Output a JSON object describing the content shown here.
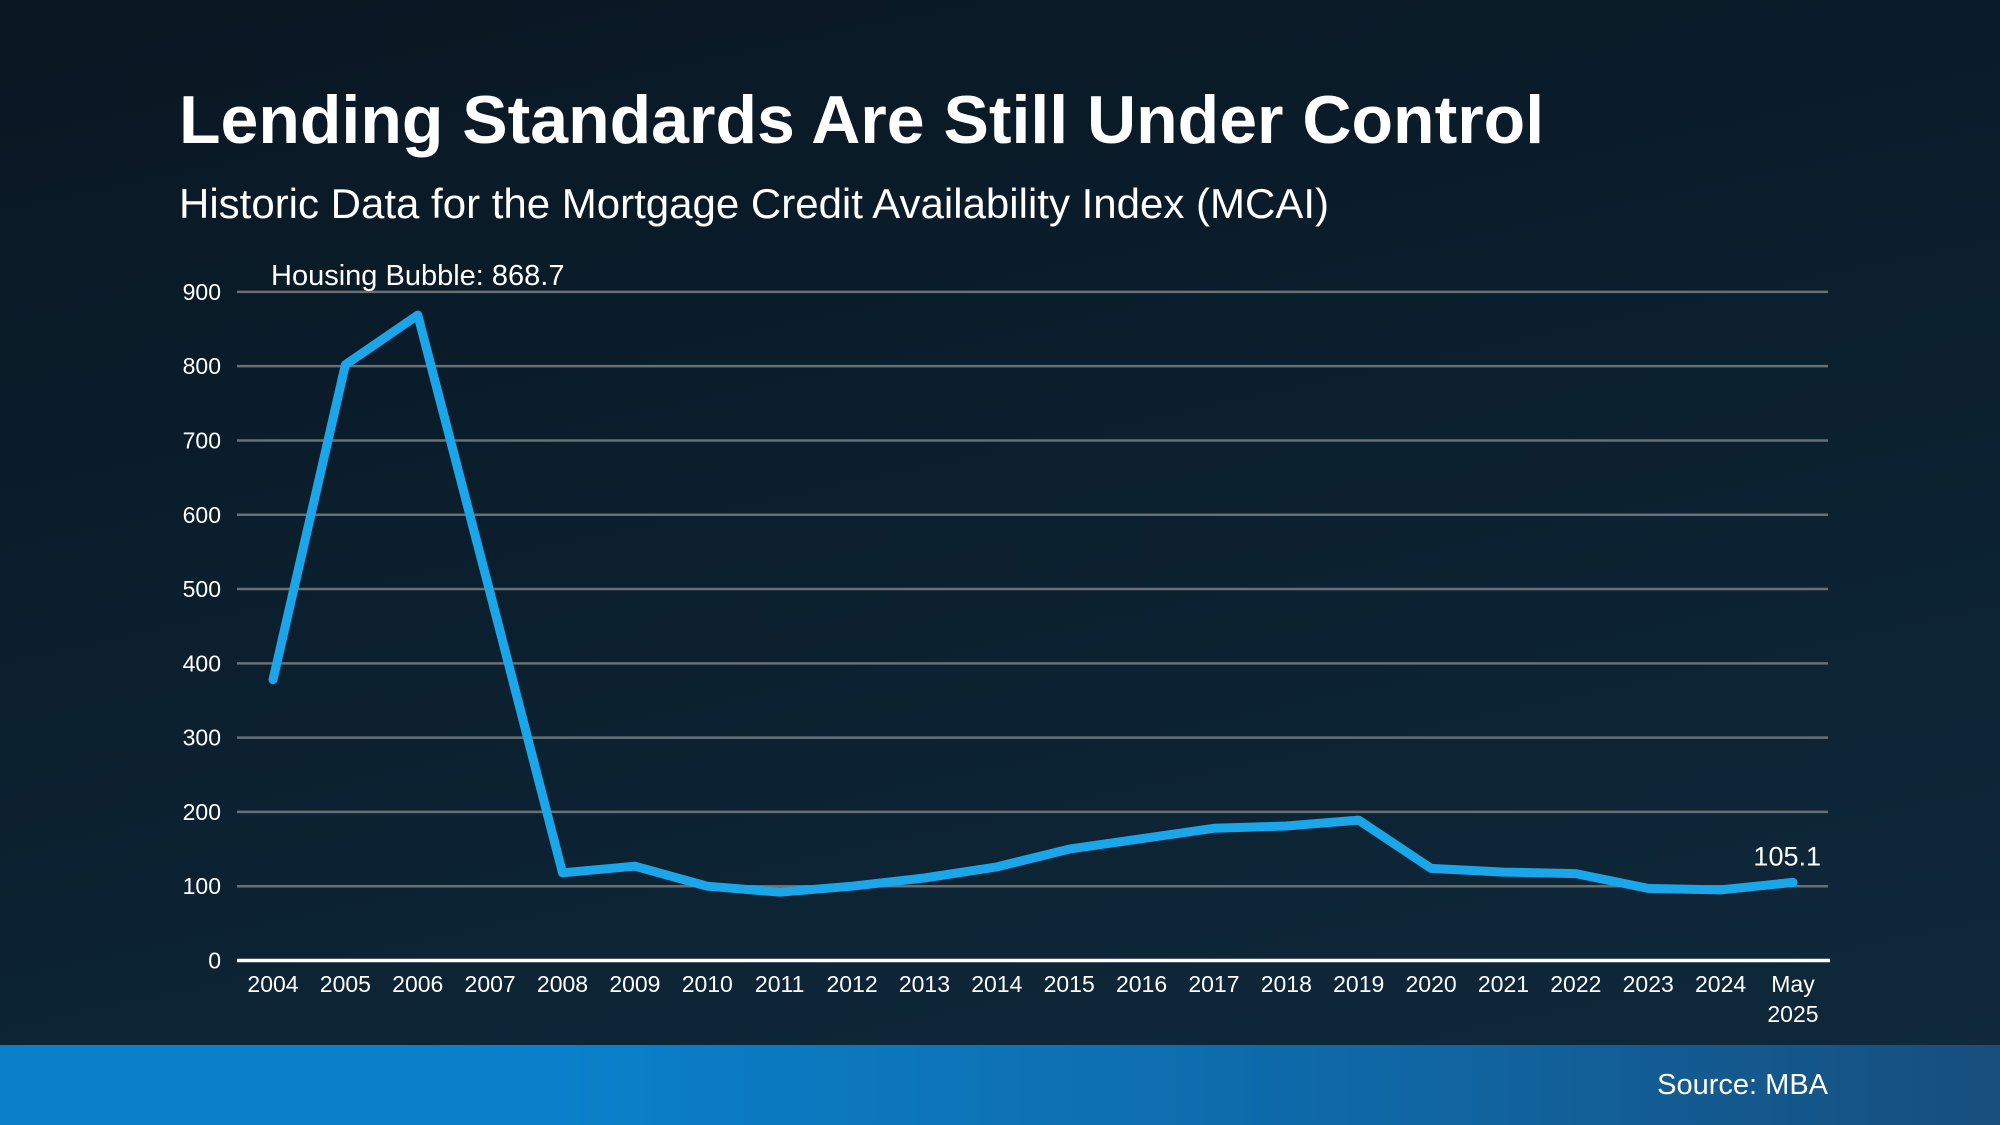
{
  "header": {
    "title": "Lending Standards Are Still Under Control",
    "subtitle": "Historic Data for the Mortgage Credit Availability Index (MCAI)"
  },
  "footer": {
    "source_label": "Source: MBA"
  },
  "chart_data": {
    "type": "line",
    "title": "Historic Data for the Mortgage Credit Availability Index (MCAI)",
    "categories": [
      "2004",
      "2005",
      "2006",
      "2007",
      "2008",
      "2009",
      "2010",
      "2011",
      "2012",
      "2013",
      "2014",
      "2015",
      "2016",
      "2017",
      "2018",
      "2019",
      "2020",
      "2021",
      "2022",
      "2023",
      "2024",
      "May 2025"
    ],
    "series": [
      {
        "name": "MCAI",
        "values": [
          378,
          802,
          868.7,
          495,
          118,
          127,
          100,
          92,
          100,
          111,
          126,
          150,
          164,
          178,
          181,
          189,
          124,
          119,
          117,
          97,
          95,
          105.1
        ]
      }
    ],
    "xlabel": "",
    "ylabel": "",
    "ylim": [
      0,
      900
    ],
    "ytick_step": 100,
    "grid": true,
    "legend_position": "none",
    "annotations": [
      {
        "text": "Housing Bubble: 868.7",
        "category_index": 2,
        "value": 868.7,
        "type": "peak-label"
      },
      {
        "text": "105.1",
        "category_index": 21,
        "value": 105.1,
        "type": "last-value-label"
      }
    ]
  },
  "colors": {
    "background_top": "#091722",
    "background_mid": "#0b1f2e",
    "background_bottom": "#0f2a3c",
    "text": "#ffffff",
    "gridline": "#687074",
    "axis": "#ffffff",
    "accent_line": "#1aa6e8",
    "footer_bar_left": "#0a80ca",
    "footer_bar_mid": "#0f68a6",
    "footer_bar_right": "#174e7d"
  }
}
